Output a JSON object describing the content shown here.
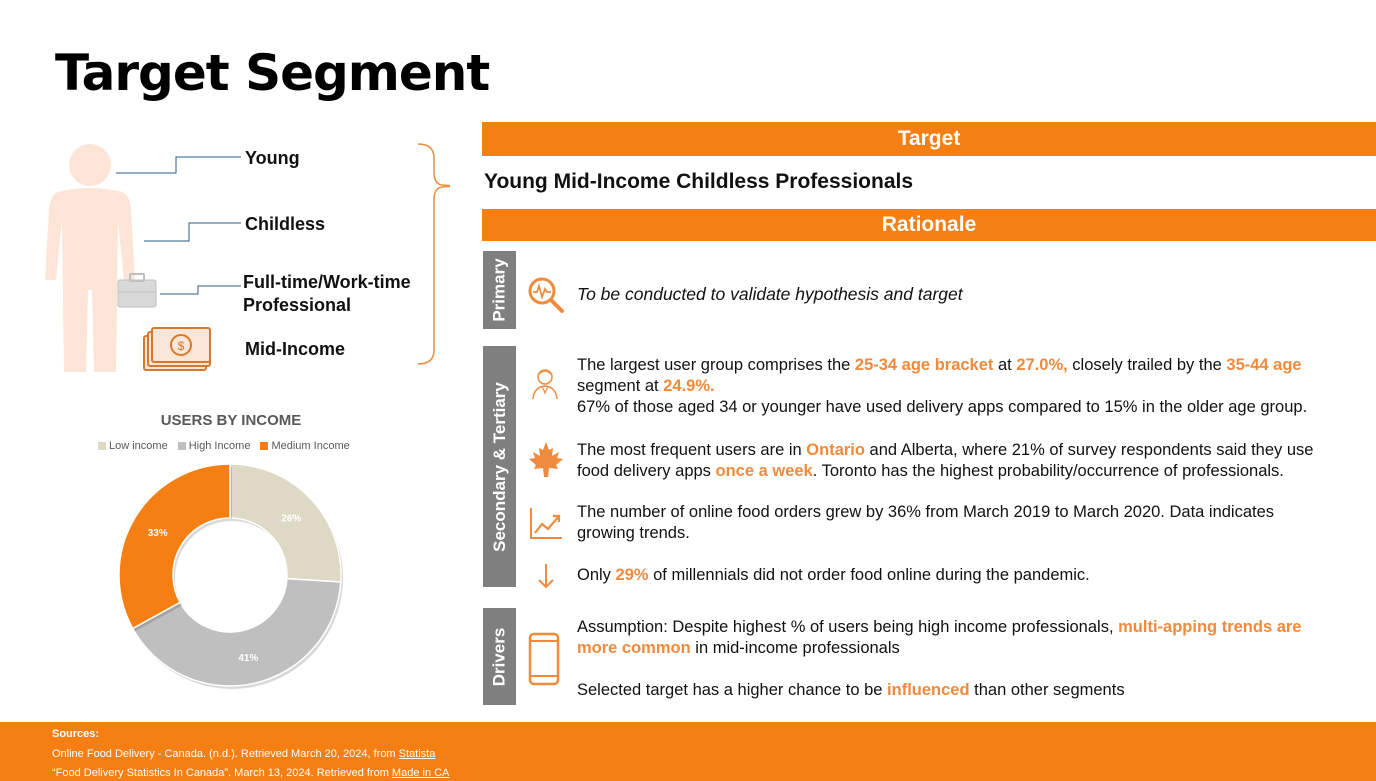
{
  "page_title": "Target Segment",
  "traits": [
    "Young",
    "Childless",
    "Full-time/Work-time",
    "Professional",
    "Mid-Income"
  ],
  "target_header": "Target",
  "target_value": "Young Mid-Income Childless Professionals",
  "rationale_header": "Rationale",
  "tabs": {
    "primary": "Primary",
    "secondary": "Secondary & Tertiary",
    "drivers": "Drivers"
  },
  "primary_text": "To be conducted to validate hypothesis and target",
  "secondary": {
    "age": {
      "t1": "The largest user group comprises the ",
      "h1": "25-34 age bracket",
      "t2": " at ",
      "h2": "27.0%,",
      "t3": " closely trailed by the ",
      "h3": "35-44 age",
      "t4": "segment at ",
      "h4": "24.9%.",
      "t5": "67% of those aged 34 or younger have used delivery apps compared to 15% in the older age group."
    },
    "location": {
      "t1": "The most frequent users are in ",
      "h1": "Ontario",
      "t2": " and Alberta, where 21% of survey respondents said they use",
      "t3": "food delivery apps ",
      "h2": "once a week",
      "t4": ". Toronto has the highest probability/occurrence of professionals."
    },
    "growth": {
      "t1": "The number of online food orders grew by 36% from March 2019 to March 2020. Data indicates",
      "t2": "growing trends."
    },
    "millennials": {
      "t1": "Only ",
      "h1": "29%",
      "t2": " of millennials did not order food online during the pandemic."
    }
  },
  "drivers": {
    "t1": "Assumption: Despite highest % of users being high income professionals, ",
    "h1": "multi-apping trends are",
    "h2": "more common",
    "t2": " in mid-income professionals",
    "t3": "Selected target has a higher chance to be ",
    "h3": "influenced",
    "t4": " than other segments"
  },
  "icons": {
    "person": "person-silhouette-icon",
    "briefcase": "briefcase-icon",
    "money": "money-stack-icon",
    "search": "search-pulse-icon",
    "user": "user-outline-icon",
    "leaf": "maple-leaf-icon",
    "trend": "trend-up-icon",
    "arrow": "arrow-down-icon",
    "phone": "phone-icon"
  },
  "colors": {
    "accent": "#F57F12",
    "highlight": "#F08A3C",
    "tab_gray": "#7F7F7F"
  },
  "chart_data": {
    "type": "pie",
    "title": "USERS BY INCOME",
    "donut": true,
    "legend_position": "top",
    "categories": [
      "Low income",
      "High Income",
      "Medium Income"
    ],
    "values": [
      26,
      41,
      33
    ],
    "labels": [
      "26%",
      "41%",
      "33%"
    ],
    "colors": [
      "#DDD9C4",
      "#BFBFBF",
      "#F57F12"
    ]
  },
  "footer": {
    "heading": "Sources:",
    "src1_text": "Online Food Delivery - Canada. (n.d.). Retrieved March 20, 2024, from ",
    "src1_link": "Statista",
    "src2_text": "“Food Delivery Statistics In Canada”. March 13, 2024. Retrieved from ",
    "src2_link": "Made in CA"
  }
}
